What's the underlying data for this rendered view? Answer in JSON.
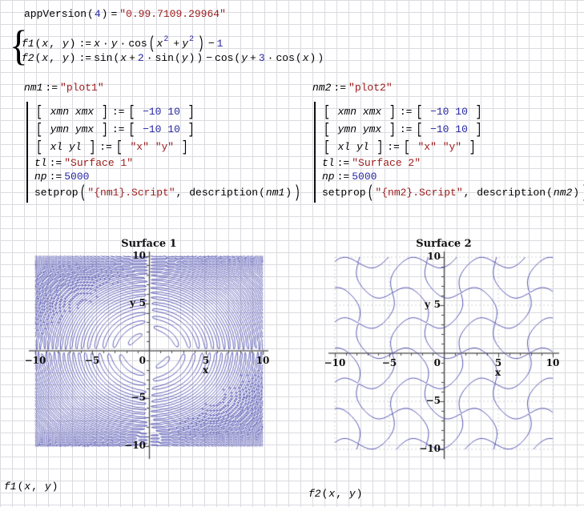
{
  "colors": {
    "string_literal": "#9c1a1a",
    "number": "#2626a6",
    "text": "#000000",
    "contour_line": "#4a4aae",
    "x_axis": "#8a8a8a",
    "y_axis": "#4a4a4a",
    "grid": "#dbdbe0"
  },
  "worksheet": {
    "app_version": [
      {
        "t": "appVersion",
        "c": "f"
      },
      {
        "t": "(",
        "c": "o"
      },
      {
        "t": "4",
        "c": "n"
      },
      {
        "t": ")",
        "c": "o"
      },
      {
        "t": "=",
        "c": "a"
      },
      {
        "t": "\"0.99.7109.29964\"",
        "c": "s"
      }
    ],
    "definitions": {
      "brace": "{",
      "f1": [
        {
          "t": "f1",
          "c": "v"
        },
        {
          "t": "(",
          "c": "o"
        },
        {
          "t": "x",
          "c": "v"
        },
        {
          "t": ", ",
          "c": "o"
        },
        {
          "t": "y",
          "c": "v"
        },
        {
          "t": ")",
          "c": "o"
        },
        {
          "t": ":=",
          "c": "a"
        },
        {
          "t": "x",
          "c": "v"
        },
        {
          "t": "·",
          "c": "a"
        },
        {
          "t": "y",
          "c": "v"
        },
        {
          "t": "·",
          "c": "a"
        },
        {
          "t": "cos",
          "c": "f"
        },
        {
          "t": "(",
          "c": "bp"
        },
        {
          "t": "x",
          "c": "v"
        },
        {
          "t": "2",
          "c": "sup"
        },
        {
          "t": "+",
          "c": "a"
        },
        {
          "t": "y",
          "c": "v"
        },
        {
          "t": "2",
          "c": "sup"
        },
        {
          "t": ")",
          "c": "bp"
        },
        {
          "t": "−",
          "c": "a"
        },
        {
          "t": "1",
          "c": "n"
        }
      ],
      "f2": [
        {
          "t": "f2",
          "c": "v"
        },
        {
          "t": "(",
          "c": "o"
        },
        {
          "t": "x",
          "c": "v"
        },
        {
          "t": ", ",
          "c": "o"
        },
        {
          "t": "y",
          "c": "v"
        },
        {
          "t": ")",
          "c": "o"
        },
        {
          "t": ":=",
          "c": "a"
        },
        {
          "t": "sin",
          "c": "f"
        },
        {
          "t": "(",
          "c": "o"
        },
        {
          "t": "x",
          "c": "v"
        },
        {
          "t": "+",
          "c": "a"
        },
        {
          "t": "2",
          "c": "n"
        },
        {
          "t": "·",
          "c": "a"
        },
        {
          "t": "sin",
          "c": "f"
        },
        {
          "t": "(",
          "c": "o"
        },
        {
          "t": "y",
          "c": "v"
        },
        {
          "t": ")",
          "c": "o"
        },
        {
          "t": ")",
          "c": "o"
        },
        {
          "t": "−",
          "c": "a"
        },
        {
          "t": "cos",
          "c": "f"
        },
        {
          "t": "(",
          "c": "o"
        },
        {
          "t": "y",
          "c": "v"
        },
        {
          "t": "+",
          "c": "a"
        },
        {
          "t": "3",
          "c": "n"
        },
        {
          "t": "·",
          "c": "a"
        },
        {
          "t": "cos",
          "c": "f"
        },
        {
          "t": "(",
          "c": "o"
        },
        {
          "t": "x",
          "c": "v"
        },
        {
          "t": ")",
          "c": "o"
        },
        {
          "t": ")",
          "c": "o"
        }
      ]
    },
    "plot1": {
      "name": [
        {
          "t": "nm1",
          "c": "v"
        },
        {
          "t": ":=",
          "c": "a"
        },
        {
          "t": "\"plot1\"",
          "c": "s"
        }
      ],
      "settings": [
        [
          {
            "t": "[",
            "c": "mb"
          },
          {
            "t": " xmn ",
            "c": "v"
          },
          {
            "t": "xmx ",
            "c": "v"
          },
          {
            "t": "]",
            "c": "mb"
          },
          {
            "t": ":=",
            "c": "a"
          },
          {
            "t": "[",
            "c": "mb"
          },
          {
            "t": " −10 ",
            "c": "n"
          },
          {
            "t": "10 ",
            "c": "n"
          },
          {
            "t": "]",
            "c": "mb"
          }
        ],
        [
          {
            "t": "[",
            "c": "mb"
          },
          {
            "t": " ymn ",
            "c": "v"
          },
          {
            "t": "ymx ",
            "c": "v"
          },
          {
            "t": "]",
            "c": "mb"
          },
          {
            "t": ":=",
            "c": "a"
          },
          {
            "t": "[",
            "c": "mb"
          },
          {
            "t": " −10 ",
            "c": "n"
          },
          {
            "t": "10 ",
            "c": "n"
          },
          {
            "t": "]",
            "c": "mb"
          }
        ],
        [
          {
            "t": "[",
            "c": "mb"
          },
          {
            "t": " xl ",
            "c": "v"
          },
          {
            "t": "yl ",
            "c": "v"
          },
          {
            "t": "]",
            "c": "mb"
          },
          {
            "t": ":=",
            "c": "a"
          },
          {
            "t": "[",
            "c": "mb"
          },
          {
            "t": " \"x\" ",
            "c": "s"
          },
          {
            "t": "\"y\" ",
            "c": "s"
          },
          {
            "t": "]",
            "c": "mb"
          }
        ],
        [
          {
            "t": "tl",
            "c": "v"
          },
          {
            "t": ":=",
            "c": "a"
          },
          {
            "t": "\"Surface 1\"",
            "c": "s"
          }
        ],
        [
          {
            "t": "np",
            "c": "v"
          },
          {
            "t": ":=",
            "c": "a"
          },
          {
            "t": "5000",
            "c": "n"
          }
        ],
        [
          {
            "t": "setprop",
            "c": "f"
          },
          {
            "t": "(",
            "c": "bp"
          },
          {
            "t": "\"{nm1}.Script\"",
            "c": "s"
          },
          {
            "t": ", ",
            "c": "o"
          },
          {
            "t": "description",
            "c": "f"
          },
          {
            "t": "(",
            "c": "o"
          },
          {
            "t": "nm1",
            "c": "v"
          },
          {
            "t": ")",
            "c": "o"
          },
          {
            "t": ")",
            "c": "bp"
          }
        ]
      ]
    },
    "plot2": {
      "name": [
        {
          "t": "nm2",
          "c": "v"
        },
        {
          "t": ":=",
          "c": "a"
        },
        {
          "t": "\"plot2\"",
          "c": "s"
        }
      ],
      "settings": [
        [
          {
            "t": "[",
            "c": "mb"
          },
          {
            "t": " xmn ",
            "c": "v"
          },
          {
            "t": "xmx ",
            "c": "v"
          },
          {
            "t": "]",
            "c": "mb"
          },
          {
            "t": ":=",
            "c": "a"
          },
          {
            "t": "[",
            "c": "mb"
          },
          {
            "t": " −10 ",
            "c": "n"
          },
          {
            "t": "10 ",
            "c": "n"
          },
          {
            "t": "]",
            "c": "mb"
          }
        ],
        [
          {
            "t": "[",
            "c": "mb"
          },
          {
            "t": " ymn ",
            "c": "v"
          },
          {
            "t": "ymx ",
            "c": "v"
          },
          {
            "t": "]",
            "c": "mb"
          },
          {
            "t": ":=",
            "c": "a"
          },
          {
            "t": "[",
            "c": "mb"
          },
          {
            "t": " −10 ",
            "c": "n"
          },
          {
            "t": "10 ",
            "c": "n"
          },
          {
            "t": "]",
            "c": "mb"
          }
        ],
        [
          {
            "t": "[",
            "c": "mb"
          },
          {
            "t": " xl ",
            "c": "v"
          },
          {
            "t": "yl ",
            "c": "v"
          },
          {
            "t": "]",
            "c": "mb"
          },
          {
            "t": ":=",
            "c": "a"
          },
          {
            "t": "[",
            "c": "mb"
          },
          {
            "t": " \"x\" ",
            "c": "s"
          },
          {
            "t": "\"y\" ",
            "c": "s"
          },
          {
            "t": "]",
            "c": "mb"
          }
        ],
        [
          {
            "t": "tl",
            "c": "v"
          },
          {
            "t": ":=",
            "c": "a"
          },
          {
            "t": "\"Surface 2\"",
            "c": "s"
          }
        ],
        [
          {
            "t": "np",
            "c": "v"
          },
          {
            "t": ":=",
            "c": "a"
          },
          {
            "t": "5000",
            "c": "n"
          }
        ],
        [
          {
            "t": "setprop",
            "c": "f"
          },
          {
            "t": "(",
            "c": "bp"
          },
          {
            "t": "\"{nm2}.Script\"",
            "c": "s"
          },
          {
            "t": ", ",
            "c": "o"
          },
          {
            "t": "description",
            "c": "f"
          },
          {
            "t": "(",
            "c": "o"
          },
          {
            "t": "nm2",
            "c": "v"
          },
          {
            "t": ")",
            "c": "o"
          },
          {
            "t": ")",
            "c": "bp"
          }
        ]
      ]
    },
    "calls": {
      "f1": [
        {
          "t": "f1",
          "c": "v"
        },
        {
          "t": "(",
          "c": "o"
        },
        {
          "t": "x",
          "c": "v"
        },
        {
          "t": ", ",
          "c": "o"
        },
        {
          "t": "y",
          "c": "v"
        },
        {
          "t": ")",
          "c": "o"
        }
      ],
      "f2": [
        {
          "t": "f2",
          "c": "v"
        },
        {
          "t": "(",
          "c": "o"
        },
        {
          "t": "x",
          "c": "v"
        },
        {
          "t": ", ",
          "c": "o"
        },
        {
          "t": "y",
          "c": "v"
        },
        {
          "t": ")",
          "c": "o"
        }
      ]
    }
  },
  "chart_data": [
    {
      "type": "contour",
      "title": "Surface 1",
      "equation": "x·y·cos(x²+y²)−1 = 0",
      "js": "x*y*Math.cos(x*x+y*y)-1",
      "xlabel": "x",
      "ylabel": "y",
      "xlim": [
        -10,
        10
      ],
      "ylim": [
        -10,
        10
      ],
      "xticks": [
        {
          "v": -10,
          "label": "−10"
        },
        {
          "v": -5,
          "label": "−5"
        },
        {
          "v": 0,
          "label": "0"
        },
        {
          "v": 5,
          "label": "5"
        },
        {
          "v": 10,
          "label": "10"
        }
      ],
      "yticks": [
        {
          "v": 10,
          "label": "10"
        },
        {
          "v": 5,
          "label": "5"
        },
        {
          "v": -5,
          "label": "−5"
        },
        {
          "v": -10,
          "label": "−10"
        }
      ],
      "samples": 5000,
      "line_color": "#4a4aae"
    },
    {
      "type": "contour",
      "title": "Surface 2",
      "equation": "sin(x+2·sin(y))−cos(y+3·cos(x)) = 0",
      "js": "Math.sin(x+2*Math.sin(y))-Math.cos(y+3*Math.cos(x))",
      "xlabel": "x",
      "ylabel": "y",
      "xlim": [
        -10,
        10
      ],
      "ylim": [
        -10,
        10
      ],
      "xticks": [
        {
          "v": -10,
          "label": "−10"
        },
        {
          "v": -5,
          "label": "−5"
        },
        {
          "v": 0,
          "label": "0"
        },
        {
          "v": 5,
          "label": "5"
        },
        {
          "v": 10,
          "label": "10"
        }
      ],
      "yticks": [
        {
          "v": 10,
          "label": "10"
        },
        {
          "v": 5,
          "label": "5"
        },
        {
          "v": -5,
          "label": "−5"
        },
        {
          "v": -10,
          "label": "−10"
        }
      ],
      "samples": 5000,
      "line_color": "#4a4aae"
    }
  ]
}
